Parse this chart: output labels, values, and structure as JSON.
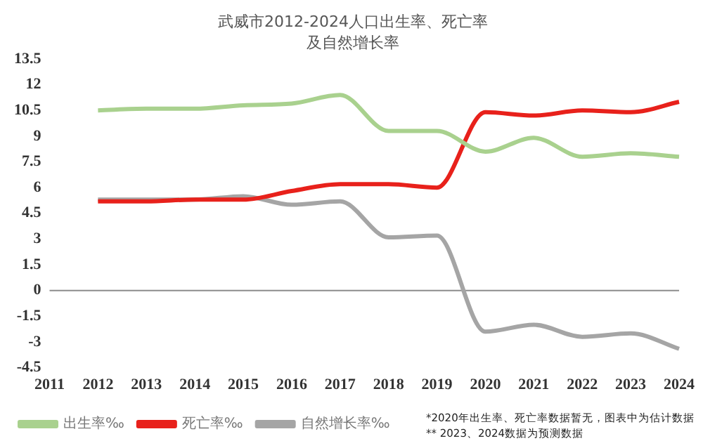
{
  "chart_data": {
    "type": "line",
    "title": "武威市2012-2024人口出生率、死亡率及自然增长率",
    "categories": [
      "2011",
      "2012",
      "2013",
      "2014",
      "2015",
      "2016",
      "2017",
      "2018",
      "2019",
      "2020",
      "2021",
      "2022",
      "2023",
      "2024"
    ],
    "series": [
      {
        "name": "出生率‰",
        "color": "#a9d18e",
        "values": [
          null,
          10.5,
          10.6,
          10.6,
          10.8,
          10.9,
          11.4,
          9.3,
          9.3,
          8.1,
          8.9,
          7.8,
          8.0,
          7.8
        ]
      },
      {
        "name": "死亡率‰",
        "color": "#e8211b",
        "values": [
          null,
          5.2,
          5.2,
          5.3,
          5.3,
          5.8,
          6.2,
          6.2,
          6.0,
          10.4,
          10.2,
          10.5,
          10.4,
          11.0
        ]
      },
      {
        "name": "自然增长率‰",
        "color": "#a5a5a5",
        "values": [
          null,
          5.3,
          5.3,
          5.3,
          5.5,
          5.0,
          5.2,
          3.1,
          3.2,
          -2.4,
          -2.0,
          -2.7,
          -2.5,
          -3.4
        ]
      }
    ],
    "ylim": [
      -4.5,
      13.5
    ],
    "yticks": [
      -4.5,
      -3,
      -1.5,
      0,
      1.5,
      3,
      4.5,
      6,
      7.5,
      9,
      10.5,
      12,
      13.5
    ],
    "grid": false,
    "legend": "bottom left",
    "ref_lines": [
      {
        "axis": "y",
        "value": 0,
        "color": "#8c8c8c"
      }
    ],
    "annotations": [
      "*2020年出生率、死亡率数据暂无，图表中为估计数据",
      "** 2023、2024数据为预测数据"
    ]
  }
}
